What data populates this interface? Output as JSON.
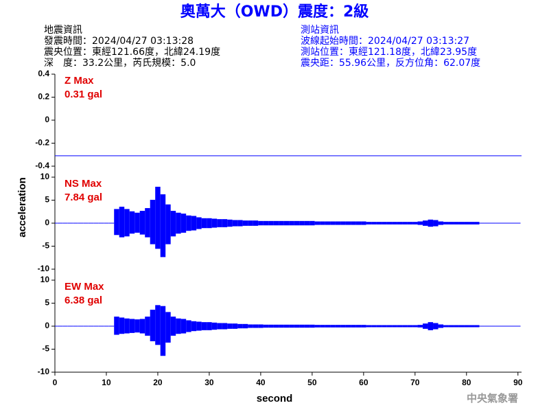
{
  "title": "奧萬大（OWD）震度：2級",
  "info_left": [
    "地震資訊",
    "發震時間：2024/04/27 03:13:28",
    "震央位置：東經121.66度，北緯24.19度",
    "深　度：33.2公里，芮氏規模：5.0"
  ],
  "info_right": [
    "測站資訊",
    "波線起始時間：2024/04/27 03:13:27",
    "測站位置：東經121.18度，北緯23.95度",
    "震央距：55.96公里，反方位角：62.07度"
  ],
  "footer": "中央氣象署",
  "chart_data": [
    {
      "type": "line",
      "annotation": "Z Max",
      "max_label": "0.31 gal",
      "color": "#0000ff",
      "ylim": [
        -0.4,
        0.4
      ],
      "yticks": [
        0.4,
        0.2,
        0,
        -0.2,
        -0.4
      ],
      "xlim": [
        0,
        90.7
      ],
      "x": [
        0,
        90.7
      ],
      "values": [
        -0.31,
        -0.31
      ]
    },
    {
      "type": "envelope",
      "annotation": "NS Max",
      "max_label": "7.84 gal",
      "color": "#0000ff",
      "ylabel": "acceleration",
      "ylim": [
        -10,
        10
      ],
      "yticks": [
        10,
        5,
        0,
        -5,
        -10
      ],
      "xlim": [
        0,
        90.7
      ],
      "x": [
        0,
        1,
        2,
        3,
        4,
        5,
        6,
        7,
        8,
        9,
        10,
        11,
        12,
        13,
        14,
        15,
        16,
        17,
        18,
        19,
        20,
        21,
        22,
        23,
        24,
        25,
        26,
        27,
        28,
        29,
        30,
        31,
        32,
        33,
        34,
        35,
        36,
        37,
        38,
        39,
        40,
        41,
        42,
        43,
        44,
        45,
        46,
        47,
        48,
        49,
        50,
        51,
        52,
        53,
        54,
        55,
        56,
        57,
        58,
        59,
        60,
        61,
        62,
        63,
        64,
        65,
        66,
        67,
        68,
        69,
        70,
        71,
        72,
        73,
        74,
        75,
        76,
        77,
        78,
        79,
        80,
        81,
        82,
        83,
        84,
        85,
        86,
        87,
        88,
        89,
        90
      ],
      "upper": [
        0,
        0,
        0,
        0,
        0,
        0,
        0,
        0,
        0,
        0,
        0,
        0,
        3.0,
        3.5,
        3.0,
        2.5,
        2.2,
        2.6,
        3.2,
        5.0,
        7.84,
        6.2,
        4.0,
        2.6,
        2.2,
        2.0,
        1.6,
        1.5,
        1.2,
        1.0,
        1.0,
        0.9,
        0.8,
        0.8,
        0.7,
        0.6,
        0.6,
        0.5,
        0.5,
        0.5,
        0.4,
        0.4,
        0.4,
        0.4,
        0.4,
        0.4,
        0.4,
        0.4,
        0.4,
        0.4,
        0.4,
        0.3,
        0.3,
        0.3,
        0.3,
        0.3,
        0.3,
        0.3,
        0.3,
        0.3,
        0.3,
        0.2,
        0.2,
        0.2,
        0.2,
        0.2,
        0.2,
        0.2,
        0.2,
        0.2,
        0.2,
        0.3,
        0.5,
        0.7,
        0.6,
        0.3,
        0.2,
        0.2,
        0.2,
        0.2,
        0.2,
        0.2,
        0.2,
        0,
        0,
        0,
        0,
        0,
        0,
        0,
        0
      ],
      "lower": [
        0,
        0,
        0,
        0,
        0,
        0,
        0,
        0,
        0,
        0,
        0,
        0,
        -2.5,
        -3.0,
        -2.8,
        -2.2,
        -2.0,
        -2.4,
        -3.0,
        -4.5,
        -5.5,
        -7.3,
        -4.5,
        -2.8,
        -2.2,
        -2.0,
        -1.6,
        -1.5,
        -1.2,
        -1.0,
        -1.0,
        -0.9,
        -0.8,
        -0.8,
        -0.7,
        -0.6,
        -0.6,
        -0.5,
        -0.5,
        -0.5,
        -0.4,
        -0.4,
        -0.4,
        -0.4,
        -0.4,
        -0.4,
        -0.4,
        -0.4,
        -0.4,
        -0.4,
        -0.4,
        -0.3,
        -0.3,
        -0.3,
        -0.3,
        -0.3,
        -0.3,
        -0.3,
        -0.3,
        -0.3,
        -0.3,
        -0.2,
        -0.2,
        -0.2,
        -0.2,
        -0.2,
        -0.2,
        -0.2,
        -0.2,
        -0.2,
        -0.2,
        -0.3,
        -0.5,
        -0.7,
        -0.6,
        -0.3,
        -0.2,
        -0.2,
        -0.2,
        -0.2,
        -0.2,
        -0.2,
        -0.2,
        0,
        0,
        0,
        0,
        0,
        0,
        0,
        0
      ]
    },
    {
      "type": "envelope",
      "annotation": "EW Max",
      "max_label": "6.38 gal",
      "color": "#0000ff",
      "xlabel": "second",
      "ylim": [
        -10,
        10
      ],
      "yticks": [
        10,
        5,
        0,
        -5,
        -10
      ],
      "xlim": [
        0,
        90.7
      ],
      "xticks": [
        0,
        10,
        20,
        30,
        40,
        50,
        60,
        70,
        80,
        90
      ],
      "x": [
        0,
        1,
        2,
        3,
        4,
        5,
        6,
        7,
        8,
        9,
        10,
        11,
        12,
        13,
        14,
        15,
        16,
        17,
        18,
        19,
        20,
        21,
        22,
        23,
        24,
        25,
        26,
        27,
        28,
        29,
        30,
        31,
        32,
        33,
        34,
        35,
        36,
        37,
        38,
        39,
        40,
        41,
        42,
        43,
        44,
        45,
        46,
        47,
        48,
        49,
        50,
        51,
        52,
        53,
        54,
        55,
        56,
        57,
        58,
        59,
        60,
        61,
        62,
        63,
        64,
        65,
        66,
        67,
        68,
        69,
        70,
        71,
        72,
        73,
        74,
        75,
        76,
        77,
        78,
        79,
        80,
        81,
        82,
        83,
        84,
        85,
        86,
        87,
        88,
        89,
        90
      ],
      "upper": [
        0,
        0,
        0,
        0,
        0,
        0,
        0,
        0,
        0,
        0,
        0,
        0,
        2.0,
        1.8,
        1.6,
        1.5,
        1.4,
        1.5,
        2.0,
        3.5,
        4.5,
        4.3,
        3.0,
        2.0,
        1.6,
        1.5,
        1.2,
        1.0,
        0.9,
        0.8,
        0.8,
        0.7,
        0.6,
        0.6,
        0.5,
        0.5,
        0.4,
        0.4,
        0.3,
        0.3,
        0.3,
        0.25,
        0.25,
        0.25,
        0.25,
        0.25,
        0.25,
        0.25,
        0.25,
        0.25,
        0.25,
        0.2,
        0.2,
        0.2,
        0.2,
        0.2,
        0.2,
        0.2,
        0.2,
        0.2,
        0.2,
        0.15,
        0.15,
        0.15,
        0.15,
        0.15,
        0.15,
        0.15,
        0.15,
        0.15,
        0.15,
        0.2,
        0.5,
        0.8,
        0.6,
        0.3,
        0.15,
        0.15,
        0.15,
        0.15,
        0.15,
        0.15,
        0.15,
        0,
        0,
        0,
        0,
        0,
        0,
        0,
        0
      ],
      "lower": [
        0,
        0,
        0,
        0,
        0,
        0,
        0,
        0,
        0,
        0,
        0,
        0,
        -1.8,
        -1.6,
        -1.5,
        -1.4,
        -1.3,
        -1.5,
        -2.0,
        -3.2,
        -4.0,
        -6.38,
        -3.5,
        -2.0,
        -1.6,
        -1.5,
        -1.2,
        -1.0,
        -0.9,
        -0.8,
        -0.8,
        -0.7,
        -0.6,
        -0.6,
        -0.5,
        -0.5,
        -0.4,
        -0.4,
        -0.3,
        -0.3,
        -0.3,
        -0.25,
        -0.25,
        -0.25,
        -0.25,
        -0.25,
        -0.25,
        -0.25,
        -0.25,
        -0.25,
        -0.25,
        -0.2,
        -0.2,
        -0.2,
        -0.2,
        -0.2,
        -0.2,
        -0.2,
        -0.2,
        -0.2,
        -0.2,
        -0.15,
        -0.15,
        -0.15,
        -0.15,
        -0.15,
        -0.15,
        -0.15,
        -0.15,
        -0.15,
        -0.15,
        -0.2,
        -0.5,
        -0.8,
        -0.6,
        -0.3,
        -0.15,
        -0.15,
        -0.15,
        -0.15,
        -0.15,
        -0.15,
        -0.15,
        0,
        0,
        0,
        0,
        0,
        0,
        0,
        0
      ]
    }
  ]
}
